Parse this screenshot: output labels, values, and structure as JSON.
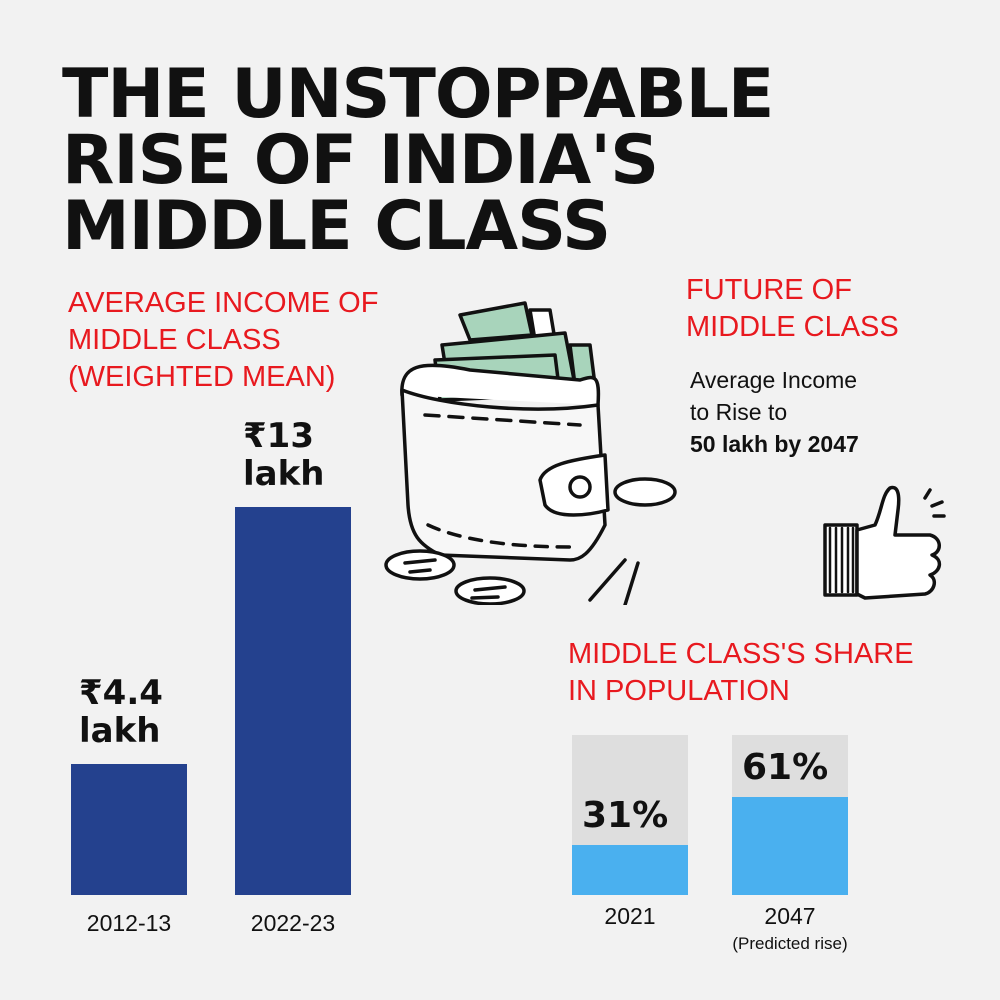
{
  "title": [
    "THE UNSTOPPABLE",
    "RISE OF INDIA'S",
    "MIDDLE CLASS"
  ],
  "income_section": {
    "heading": [
      "AVERAGE INCOME OF",
      "MIDDLE CLASS",
      "(WEIGHTED MEAN)"
    ]
  },
  "future_section": {
    "heading": [
      "FUTURE OF",
      "MIDDLE CLASS"
    ],
    "text": [
      "Average Income",
      "to Rise to"
    ],
    "highlight": "50 lakh by 2047"
  },
  "share_section": {
    "heading": [
      "MIDDLE CLASS'S SHARE",
      "IN POPULATION"
    ]
  },
  "colors": {
    "accent": "#e8191f",
    "income_bar": "#24418e",
    "share_fill": "#4ab0ef",
    "share_bg": "#dedede"
  },
  "chart_data": [
    {
      "type": "bar",
      "title": "AVERAGE INCOME OF MIDDLE CLASS (WEIGHTED MEAN)",
      "categories": [
        "2012-13",
        "2022-23"
      ],
      "values": [
        4.4,
        13
      ],
      "unit": "lakh",
      "labels": [
        [
          "₹4.4",
          "lakh"
        ],
        [
          "₹13",
          "lakh"
        ]
      ]
    },
    {
      "type": "bar",
      "title": "MIDDLE CLASS'S SHARE IN POPULATION",
      "categories": [
        "2021",
        "2047"
      ],
      "values": [
        31,
        61
      ],
      "labels": [
        "31%",
        "61%"
      ],
      "sublabels": [
        "",
        "(Predicted rise)"
      ],
      "ylim": [
        0,
        100
      ]
    }
  ]
}
